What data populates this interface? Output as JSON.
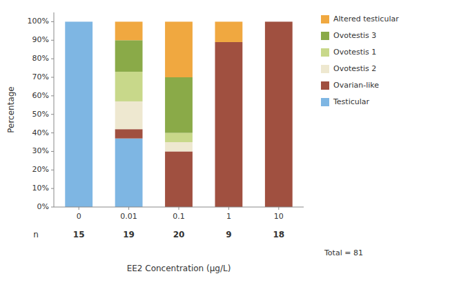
{
  "chart_data": {
    "type": "bar",
    "stacked": true,
    "categories": [
      "0",
      "0.01",
      "0.1",
      "1",
      "10"
    ],
    "series": [
      {
        "name": "Testicular",
        "color": "#7EB6E3",
        "values": [
          100,
          37,
          0,
          0,
          0
        ]
      },
      {
        "name": "Ovarian-like",
        "color": "#A05040",
        "values": [
          0,
          5,
          30,
          89,
          100
        ]
      },
      {
        "name": "Ovotestis 2",
        "color": "#EEE8D0",
        "values": [
          0,
          15,
          5,
          0,
          0
        ]
      },
      {
        "name": "Ovotestis 1",
        "color": "#C8D88A",
        "values": [
          0,
          16,
          5,
          0,
          0
        ]
      },
      {
        "name": "Ovotestis 3",
        "color": "#8AAA48",
        "values": [
          0,
          17,
          30,
          0,
          0
        ]
      },
      {
        "name": "Altered testicular",
        "color": "#F0A840",
        "values": [
          0,
          10,
          30,
          11,
          0
        ]
      }
    ],
    "xlabel": "EE2 Concentration (μg/L)",
    "ylabel": "Percentage",
    "ylim": [
      0,
      105
    ],
    "yticks": [
      {
        "value": 0,
        "label": "0%"
      },
      {
        "value": 10,
        "label": "10%"
      },
      {
        "value": 20,
        "label": "20%"
      },
      {
        "value": 30,
        "label": "30%"
      },
      {
        "value": 40,
        "label": "40%"
      },
      {
        "value": 50,
        "label": "50%"
      },
      {
        "value": 60,
        "label": "60%"
      },
      {
        "value": 70,
        "label": "70%"
      },
      {
        "value": 80,
        "label": "80%"
      },
      {
        "value": 90,
        "label": "90%"
      },
      {
        "value": 100,
        "label": "100%"
      }
    ],
    "n_label": "n",
    "n_values": [
      15,
      19,
      20,
      9,
      18
    ],
    "annotations": [
      "Total = 81"
    ],
    "grid": false,
    "legend": "right"
  }
}
